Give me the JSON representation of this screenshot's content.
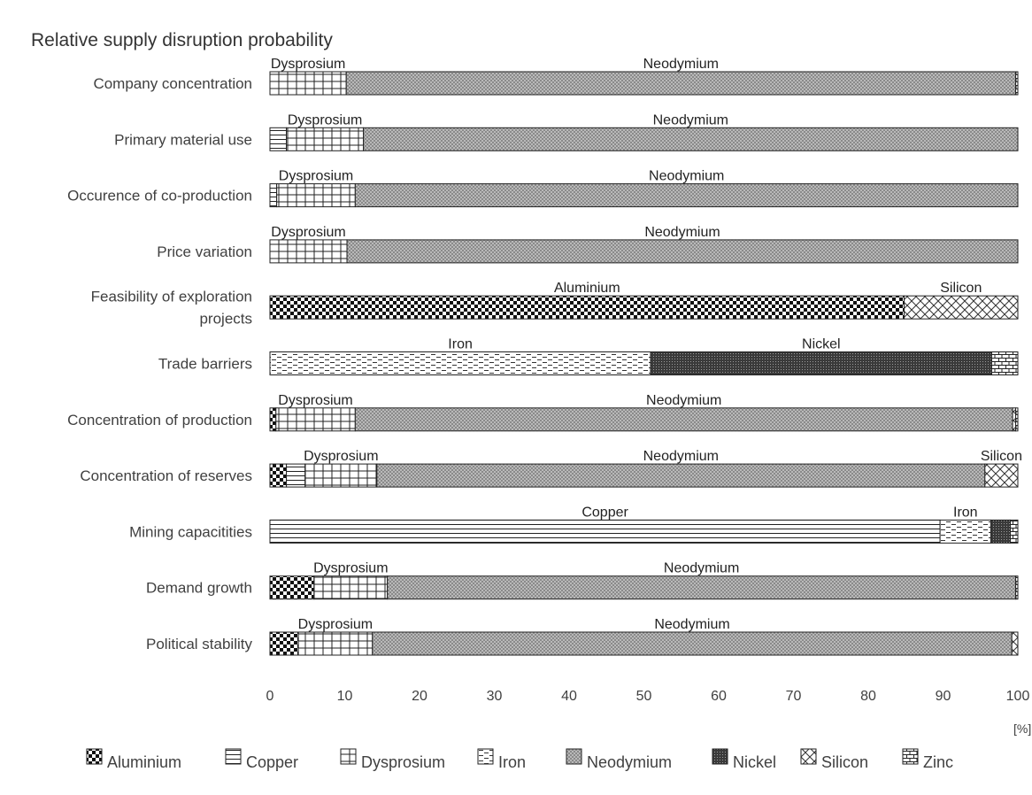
{
  "chart_data": {
    "type": "bar",
    "orientation": "horizontal",
    "stacked": true,
    "title": "Relative supply disruption probability",
    "xlabel": "",
    "x_unit": "[%]",
    "xlim": [
      0,
      100
    ],
    "xticks": [
      "0",
      "10",
      "20",
      "30",
      "40",
      "50",
      "60",
      "70",
      "80",
      "90",
      "100"
    ],
    "grid": false,
    "legend_position": "bottom",
    "categories": [
      "Company concentration",
      "Primary material use",
      "Occurence of co-production",
      "Price variation",
      "Feasibility of exploration projects",
      "Trade barriers",
      "Concentration of production",
      "Concentration of reserves",
      "Mining capacitities",
      "Demand growth",
      "Political stability"
    ],
    "series": [
      {
        "name": "Aluminium",
        "pattern": "checker",
        "values": [
          0,
          0,
          0,
          0,
          84.8,
          0,
          0.8,
          2.2,
          0,
          5.9,
          3.8
        ]
      },
      {
        "name": "Copper",
        "pattern": "hlines",
        "values": [
          0,
          2.2,
          0.9,
          0,
          0,
          0,
          0,
          2.5,
          89.6,
          0,
          0
        ]
      },
      {
        "name": "Dysprosium",
        "pattern": "grid",
        "values": [
          10.2,
          10.3,
          10.5,
          10.3,
          0,
          0,
          10.6,
          9.6,
          0,
          9.8,
          9.9
        ]
      },
      {
        "name": "Iron",
        "pattern": "dashes",
        "values": [
          0,
          0,
          0,
          0,
          0,
          50.9,
          0,
          0,
          6.8,
          0,
          0
        ]
      },
      {
        "name": "Neodymium",
        "pattern": "smallcheck",
        "values": [
          89.5,
          87.5,
          88.6,
          89.7,
          0,
          0,
          87.9,
          81.3,
          0,
          84.0,
          85.5
        ]
      },
      {
        "name": "Nickel",
        "pattern": "dense",
        "values": [
          0,
          0,
          0,
          0,
          0,
          45.6,
          0,
          0,
          2.6,
          0,
          0
        ]
      },
      {
        "name": "Silicon",
        "pattern": "crosshatch",
        "values": [
          0,
          0,
          0,
          0,
          15.2,
          0,
          0.4,
          4.4,
          0,
          0,
          0.8
        ]
      },
      {
        "name": "Zinc",
        "pattern": "brick",
        "values": [
          0.3,
          0,
          0,
          0,
          0,
          3.5,
          0.3,
          0,
          1.0,
          0.3,
          0
        ]
      }
    ],
    "segment_labels": [
      [
        {
          "text": "Dysprosium",
          "series": "Dysprosium"
        },
        {
          "text": "Neodymium",
          "series": "Neodymium"
        }
      ],
      [
        {
          "text": "Dysprosium",
          "series": "Dysprosium"
        },
        {
          "text": "Neodymium",
          "series": "Neodymium"
        }
      ],
      [
        {
          "text": "Dysprosium",
          "series": "Dysprosium"
        },
        {
          "text": "Neodymium",
          "series": "Neodymium"
        }
      ],
      [
        {
          "text": "Dysprosium",
          "series": "Dysprosium"
        },
        {
          "text": "Neodymium",
          "series": "Neodymium"
        }
      ],
      [
        {
          "text": "Aluminium",
          "series": "Aluminium"
        },
        {
          "text": "Silicon",
          "series": "Silicon"
        }
      ],
      [
        {
          "text": "Iron",
          "series": "Iron"
        },
        {
          "text": "Nickel",
          "series": "Nickel"
        }
      ],
      [
        {
          "text": "Dysprosium",
          "series": "Dysprosium"
        },
        {
          "text": "Neodymium",
          "series": "Neodymium"
        }
      ],
      [
        {
          "text": "Dysprosium",
          "series": "Dysprosium"
        },
        {
          "text": "Neodymium",
          "series": "Neodymium"
        },
        {
          "text": "Silicon",
          "series": "Silicon"
        }
      ],
      [
        {
          "text": "Copper",
          "series": "Copper"
        },
        {
          "text": "Iron",
          "series": "Iron"
        }
      ],
      [
        {
          "text": "Dysprosium",
          "series": "Dysprosium"
        },
        {
          "text": "Neodymium",
          "series": "Neodymium"
        }
      ],
      [
        {
          "text": "Dysprosium",
          "series": "Dysprosium"
        },
        {
          "text": "Neodymium",
          "series": "Neodymium"
        }
      ]
    ]
  }
}
